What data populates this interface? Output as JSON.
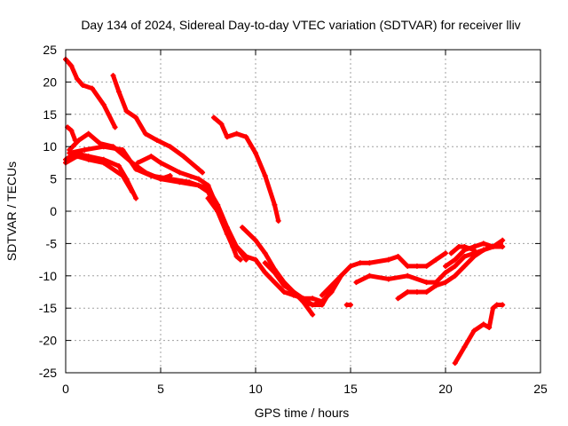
{
  "chart_data": {
    "type": "scatter",
    "title": "Day 134 of 2024, Sidereal Day-to-day VTEC variation (SDTVAR) for receiver lliv",
    "xlabel": "GPS time / hours",
    "ylabel": "SDTVAR / TECUs",
    "xlim": [
      0,
      25
    ],
    "ylim": [
      -25,
      25
    ],
    "xticks": [
      0,
      5,
      10,
      15,
      20,
      25
    ],
    "yticks": [
      -25,
      -20,
      -15,
      -10,
      -5,
      0,
      5,
      10,
      15,
      20,
      25
    ],
    "grid": true,
    "marker": "+",
    "series_color": "#ff0000",
    "series": [
      {
        "name": "track-1",
        "x": [
          0.0,
          0.3,
          0.6,
          0.9,
          1.4,
          2.0,
          2.6
        ],
        "y": [
          23.5,
          22.5,
          20.5,
          19.5,
          19.0,
          16.5,
          13.0
        ]
      },
      {
        "name": "track-2",
        "x": [
          0.1,
          0.3,
          0.5
        ],
        "y": [
          13.0,
          12.5,
          11.0
        ]
      },
      {
        "name": "track-3",
        "x": [
          0.0,
          0.5,
          1.2,
          2.0,
          2.8,
          3.2,
          3.7
        ],
        "y": [
          8.0,
          9.0,
          8.5,
          8.0,
          7.0,
          5.0,
          2.0
        ]
      },
      {
        "name": "track-4",
        "x": [
          0.0,
          0.6,
          1.2,
          2.0,
          3.0,
          3.5
        ],
        "y": [
          7.5,
          8.5,
          8.0,
          7.5,
          5.5,
          3.0
        ]
      },
      {
        "name": "track-5",
        "x": [
          0.2,
          0.7,
          1.2,
          1.8,
          2.5,
          3.5,
          4.2,
          5.0,
          5.5
        ],
        "y": [
          9.5,
          11.0,
          12.0,
          10.5,
          10.0,
          7.5,
          6.0,
          5.0,
          5.5
        ]
      },
      {
        "name": "track-6",
        "x": [
          0.2,
          1.0,
          2.0,
          3.0,
          3.7,
          4.5,
          5.5,
          6.5,
          7.0,
          7.5,
          8.0,
          8.5,
          9.0,
          9.5
        ],
        "y": [
          9.0,
          9.5,
          10.0,
          9.5,
          6.5,
          5.5,
          5.0,
          4.5,
          4.0,
          3.5,
          1.0,
          -2.5,
          -5.5,
          -7.0
        ]
      },
      {
        "name": "track-7",
        "x": [
          2.5,
          2.8,
          3.2,
          3.7,
          4.2,
          4.8,
          5.5,
          6.2,
          7.0,
          7.2
        ],
        "y": [
          21.0,
          18.5,
          15.5,
          14.5,
          12.0,
          11.0,
          10.0,
          8.5,
          6.5,
          6.0
        ]
      },
      {
        "name": "track-8",
        "x": [
          3.8,
          4.5,
          5.0,
          6.0,
          7.0,
          7.5,
          8.0,
          8.5,
          9.0,
          9.5
        ],
        "y": [
          7.5,
          8.5,
          7.5,
          6.0,
          5.0,
          4.0,
          0.5,
          -3.0,
          -5.5,
          -7.5
        ]
      },
      {
        "name": "track-9",
        "x": [
          4.5,
          5.0,
          6.0,
          7.0,
          7.5,
          8.0,
          8.5,
          9.0
        ],
        "y": [
          5.5,
          5.0,
          4.5,
          4.0,
          3.0,
          0.0,
          -3.5,
          -5.5
        ]
      },
      {
        "name": "track-10",
        "x": [
          7.8,
          8.2,
          8.5,
          9.0,
          9.5,
          10.0,
          10.5,
          11.0,
          11.2
        ],
        "y": [
          14.5,
          13.5,
          11.5,
          12.0,
          11.5,
          9.0,
          5.5,
          1.0,
          -1.5
        ]
      },
      {
        "name": "track-11",
        "x": [
          7.5,
          8.0,
          8.5,
          8.8,
          9.0,
          9.2
        ],
        "y": [
          2.0,
          0.0,
          -3.5,
          -5.5,
          -7.0,
          -7.5
        ]
      },
      {
        "name": "track-12",
        "x": [
          9.5,
          10.0,
          10.5,
          11.0,
          11.5,
          12.0,
          12.5,
          13.0,
          13.5,
          14.0
        ],
        "y": [
          -7.0,
          -7.5,
          -9.5,
          -11.0,
          -12.5,
          -13.0,
          -13.5,
          -14.5,
          -14.5,
          -12.0
        ]
      },
      {
        "name": "track-13",
        "x": [
          9.3,
          10.0,
          10.5,
          11.0,
          11.5,
          12.0,
          12.5,
          13.0
        ],
        "y": [
          -2.5,
          -4.5,
          -6.5,
          -9.0,
          -11.0,
          -12.5,
          -14.0,
          -16.0
        ]
      },
      {
        "name": "track-14",
        "x": [
          10.5,
          11.0,
          11.5,
          12.0,
          12.5,
          13.0,
          13.5
        ],
        "y": [
          -8.0,
          -9.5,
          -11.5,
          -12.5,
          -13.5,
          -13.5,
          -14.0
        ]
      },
      {
        "name": "track-15",
        "x": [
          12.5,
          13.0,
          13.5,
          14.0,
          14.5
        ],
        "y": [
          -14.0,
          -14.5,
          -14.0,
          -12.5,
          -10.0
        ]
      },
      {
        "name": "track-16",
        "x": [
          13.5,
          14.0,
          14.5,
          15.0,
          15.5,
          16.0,
          17.0,
          17.5,
          18.0,
          18.5,
          19.0,
          19.5,
          20.0
        ],
        "y": [
          -13.0,
          -11.5,
          -10.0,
          -8.5,
          -8.0,
          -8.0,
          -7.5,
          -7.0,
          -8.5,
          -8.5,
          -8.5,
          -7.5,
          -6.5
        ]
      },
      {
        "name": "track-17",
        "x": [
          14.8,
          15.0
        ],
        "y": [
          -14.5,
          -14.5
        ]
      },
      {
        "name": "track-18",
        "x": [
          15.3,
          16.0,
          17.0,
          18.0,
          19.0,
          19.5,
          20.0,
          20.5,
          21.0,
          21.5,
          22.0,
          22.5,
          22.9
        ],
        "y": [
          -11.0,
          -10.0,
          -10.5,
          -10.0,
          -11.0,
          -11.0,
          -9.5,
          -8.5,
          -7.0,
          -6.5,
          -6.0,
          -5.5,
          -5.0
        ]
      },
      {
        "name": "track-19",
        "x": [
          17.5,
          18.0,
          18.5,
          19.0,
          19.5,
          20.0,
          20.5,
          21.0,
          21.5,
          22.0,
          22.5,
          23.0
        ],
        "y": [
          -13.5,
          -12.5,
          -12.5,
          -12.5,
          -11.5,
          -11.0,
          -10.0,
          -8.5,
          -7.0,
          -6.0,
          -5.5,
          -5.5
        ]
      },
      {
        "name": "track-20",
        "x": [
          20.0,
          20.5,
          21.0,
          21.5,
          22.0,
          22.5,
          23.0
        ],
        "y": [
          -8.5,
          -7.5,
          -6.0,
          -5.5,
          -5.0,
          -5.5,
          -4.5
        ]
      },
      {
        "name": "track-21",
        "x": [
          20.3,
          20.7,
          21.0,
          21.5
        ],
        "y": [
          -6.5,
          -5.5,
          -5.5,
          -6.0
        ]
      },
      {
        "name": "track-22",
        "x": [
          20.5,
          21.0,
          21.5,
          22.0,
          22.3,
          22.5,
          22.7,
          23.0
        ],
        "y": [
          -23.5,
          -21.0,
          -18.5,
          -17.5,
          -18.0,
          -15.0,
          -14.5,
          -14.5
        ]
      }
    ]
  }
}
